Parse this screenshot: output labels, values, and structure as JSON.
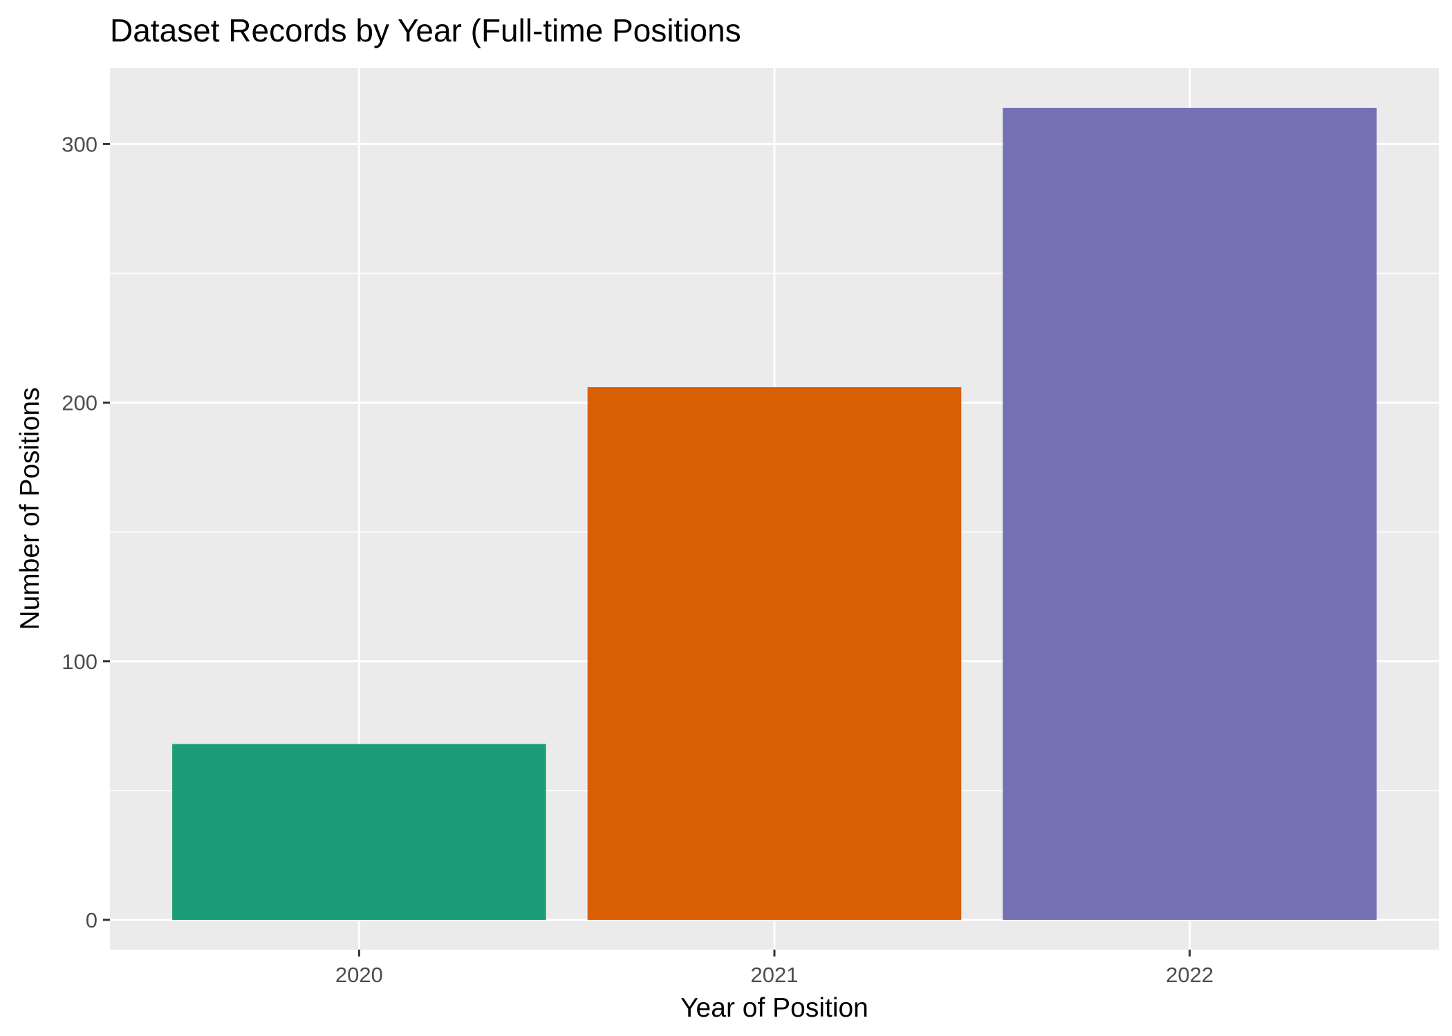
{
  "chart_data": {
    "type": "bar",
    "title": "Dataset Records by Year (Full-time Positions",
    "xlabel": "Year of Position",
    "ylabel": "Number of Positions",
    "categories": [
      "2020",
      "2021",
      "2022"
    ],
    "values": [
      68,
      206,
      314
    ],
    "colors": [
      "#1B9E77",
      "#D95F02",
      "#7570B3"
    ],
    "ylim": [
      -11.5,
      329.5
    ],
    "y_ticks": [
      0,
      100,
      200,
      300
    ],
    "y_tick_labels": [
      "0",
      "100",
      "200",
      "300"
    ],
    "grid": true,
    "panel_color": "#EBEBEB",
    "gridline_color": "#FFFFFF",
    "legend": "none"
  }
}
